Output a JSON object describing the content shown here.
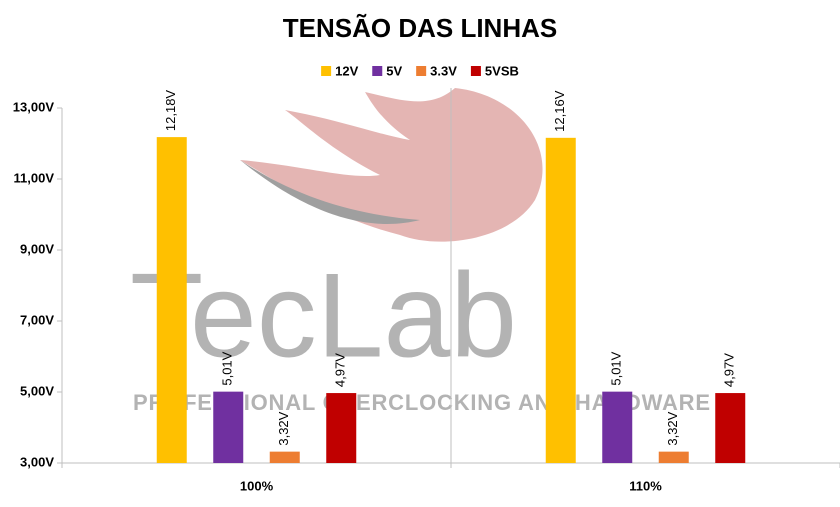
{
  "chart_data": {
    "type": "bar",
    "title": "TENSÃO DAS LINHAS",
    "categories": [
      "100%",
      "110%"
    ],
    "series": [
      {
        "name": "12V",
        "color": "#FFC000",
        "values": [
          12.18,
          12.16
        ],
        "value_labels": [
          "12,18V",
          "12,16V"
        ]
      },
      {
        "name": "5V",
        "color": "#7030A0",
        "values": [
          5.01,
          5.01
        ],
        "value_labels": [
          "5,01V",
          "5,01V"
        ]
      },
      {
        "name": "3.3V",
        "color": "#ED7D31",
        "values": [
          3.32,
          3.32
        ],
        "value_labels": [
          "3,32V",
          "3,32V"
        ]
      },
      {
        "name": "5VSB",
        "color": "#C00000",
        "values": [
          4.97,
          4.97
        ],
        "value_labels": [
          "4,97V",
          "4,97V"
        ]
      }
    ],
    "ylim": [
      3,
      13
    ],
    "yticks": [
      {
        "value": 3,
        "label": "3,00V"
      },
      {
        "value": 5,
        "label": "5,00V"
      },
      {
        "value": 7,
        "label": "7,00V"
      },
      {
        "value": 9,
        "label": "9,00V"
      },
      {
        "value": 11,
        "label": "11,00V"
      },
      {
        "value": 13,
        "label": "13,00V"
      }
    ],
    "grid": false,
    "legend": "top"
  },
  "watermark": {
    "logo": "TecLab",
    "tagline": "PROFESSIONAL OVERCLOCKING AND HARDWARE"
  }
}
